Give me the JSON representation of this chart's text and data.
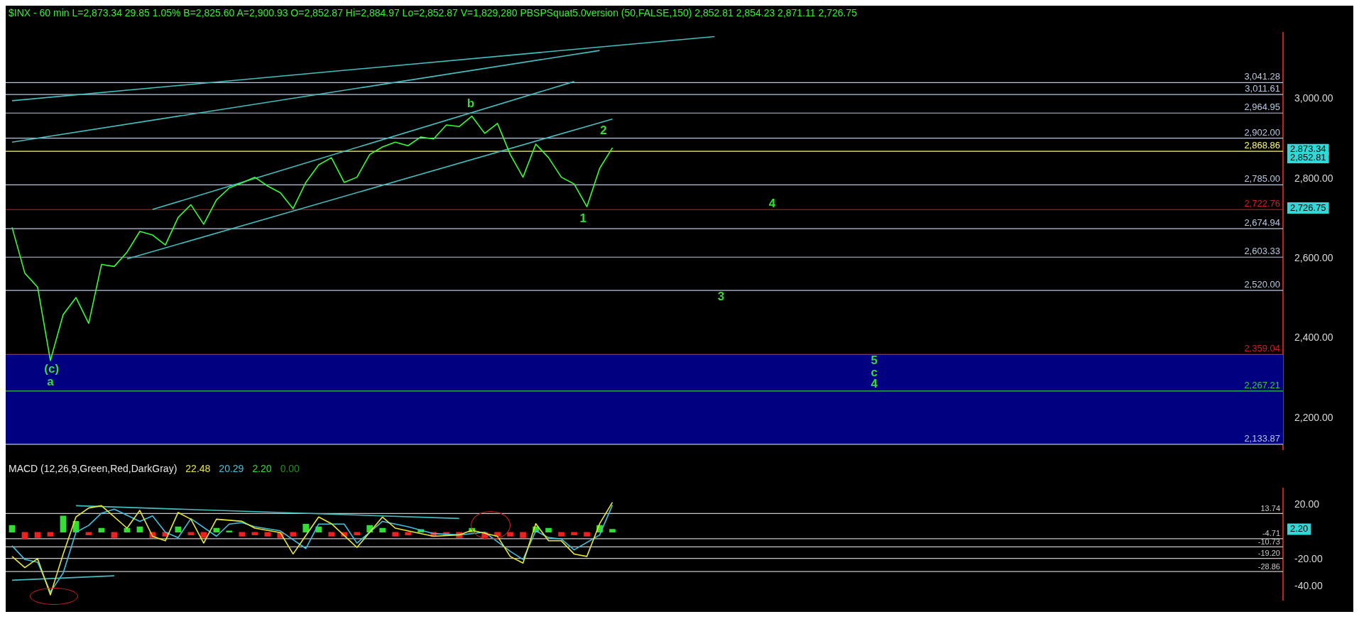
{
  "chart_data": [
    {
      "type": "line",
      "subtitle": "$INX - 60 min  L=2,873.34  29.85  1.05%  B=2,825.60  A=2,900.93  O=2,852.87  Hi=2,884.97  Lo=2,852.87  V=1,829,280  PBSPSquat5.0version (50,FALSE,150)  2,852.81  2,854.23  2,871.11  2,726.75",
      "categories": [
        null,
        null,
        null,
        null,
        null,
        null,
        null,
        null,
        null,
        null,
        null,
        null,
        null,
        null,
        null,
        null,
        null,
        null,
        null,
        null,
        null,
        null,
        null,
        null,
        null,
        null,
        null,
        null,
        null,
        null,
        null,
        null,
        null,
        null,
        null,
        null,
        null,
        null,
        null,
        null,
        null,
        null,
        null,
        null,
        null,
        null,
        null,
        null,
        null,
        null,
        null,
        null,
        null,
        null,
        null,
        null,
        null,
        null,
        null,
        null,
        null,
        null,
        null,
        null,
        null,
        null,
        null,
        null,
        null,
        null,
        null,
        null,
        null,
        null,
        null,
        null,
        null,
        null,
        null,
        null,
        null,
        null,
        null,
        null,
        null,
        null,
        null,
        null,
        null,
        null,
        null,
        null,
        null,
        null,
        null,
        null,
        null,
        null,
        null,
        null
      ],
      "ylim": [
        2120,
        3166
      ],
      "yticks": [
        {
          "value": 2200,
          "label": "2,200.00"
        },
        {
          "value": 2400,
          "label": "2,400.00"
        },
        {
          "value": 2600,
          "label": "2,600.00"
        },
        {
          "value": 2800,
          "label": "2,800.00"
        },
        {
          "value": 3000,
          "label": "3,000.00"
        }
      ],
      "tick_labels": "y",
      "grid": false,
      "legend": false,
      "series": [
        {
          "color": "#33ff33",
          "values": [
            2678,
            2563,
            2528,
            2344,
            2459,
            2502,
            2437,
            2585,
            2580,
            2616,
            2668,
            2659,
            2634,
            2703,
            2735,
            2686,
            2747,
            2777,
            2790,
            2804,
            2782,
            2765,
            2725,
            2791,
            2835,
            2853,
            2791,
            2804,
            2861,
            2880,
            2892,
            2883,
            2905,
            2900,
            2935,
            2931,
            2957,
            2914,
            2939,
            2861,
            2804,
            2887,
            2853,
            2804,
            2787,
            2730,
            2826,
            2878,
            null,
            null,
            null,
            null,
            null,
            null,
            null,
            null,
            null,
            null,
            null,
            null,
            null,
            null,
            null,
            null,
            null,
            null,
            null,
            null,
            null,
            null,
            null,
            null,
            null,
            null,
            null,
            null,
            null,
            null,
            null,
            null,
            null,
            null,
            null,
            null,
            null,
            null,
            null,
            null,
            null,
            null,
            null,
            null,
            null,
            null,
            null,
            null,
            null,
            null,
            null,
            null
          ]
        },
        {
          "color": "#40c0c0",
          "values": [
            2996,
            null,
            null,
            null,
            null,
            null,
            null,
            null,
            null,
            null,
            null,
            null,
            null,
            null,
            null,
            null,
            null,
            null,
            null,
            null,
            null,
            null,
            null,
            null,
            null,
            null,
            null,
            null,
            null,
            null,
            null,
            null,
            null,
            null,
            null,
            null,
            null,
            null,
            null,
            null,
            null,
            null,
            null,
            null,
            null,
            null,
            null,
            null,
            null,
            null,
            null,
            null,
            null,
            null,
            null,
            3157,
            null,
            null,
            null,
            null,
            null,
            null,
            null,
            null,
            null,
            null,
            null,
            null,
            null,
            null,
            null,
            null,
            null,
            null,
            null,
            null,
            null,
            null,
            null,
            null,
            null,
            null,
            null,
            null,
            null,
            null,
            null,
            null,
            null,
            null,
            null,
            null,
            null,
            null,
            null,
            null,
            null,
            null,
            null,
            null
          ]
        },
        {
          "color": "#40c0c0",
          "values": [
            2892,
            null,
            null,
            null,
            null,
            null,
            null,
            null,
            null,
            null,
            null,
            null,
            null,
            null,
            null,
            null,
            null,
            null,
            null,
            null,
            null,
            null,
            null,
            null,
            null,
            null,
            null,
            null,
            null,
            null,
            null,
            null,
            null,
            null,
            null,
            null,
            null,
            null,
            null,
            null,
            null,
            null,
            null,
            null,
            null,
            null,
            3122,
            null,
            null,
            null,
            null,
            null,
            null,
            null,
            null,
            null,
            null,
            null,
            null,
            null,
            null,
            null,
            null,
            null,
            null,
            null,
            null,
            null,
            null,
            null,
            null,
            null,
            null,
            null,
            null,
            null,
            null,
            null,
            null,
            null,
            null,
            null,
            null,
            null,
            null,
            null,
            null,
            null,
            null,
            null,
            null,
            null,
            null,
            null,
            null,
            null,
            null,
            null,
            null,
            null
          ]
        },
        {
          "color": "#40c0c0",
          "values": [
            null,
            null,
            null,
            null,
            null,
            null,
            null,
            null,
            null,
            null,
            null,
            2723,
            null,
            null,
            null,
            null,
            null,
            null,
            null,
            null,
            null,
            null,
            null,
            null,
            null,
            null,
            null,
            null,
            null,
            null,
            null,
            null,
            null,
            null,
            null,
            null,
            null,
            null,
            null,
            null,
            null,
            null,
            null,
            null,
            3044,
            null,
            null,
            null,
            null,
            null,
            null,
            null,
            null,
            null,
            null,
            null,
            null,
            null,
            null,
            null,
            null,
            null,
            null,
            null,
            null,
            null,
            null,
            null,
            null,
            null,
            null,
            null,
            null,
            null,
            null,
            null,
            null,
            null,
            null,
            null,
            null,
            null,
            null,
            null,
            null,
            null,
            null,
            null,
            null,
            null,
            null,
            null,
            null,
            null,
            null,
            null,
            null,
            null,
            null,
            null
          ]
        },
        {
          "color": "#40c0c0",
          "values": [
            null,
            null,
            null,
            null,
            null,
            null,
            null,
            null,
            null,
            2599,
            null,
            null,
            null,
            null,
            null,
            null,
            null,
            null,
            null,
            null,
            null,
            null,
            null,
            null,
            null,
            null,
            null,
            null,
            null,
            null,
            null,
            null,
            null,
            null,
            null,
            null,
            null,
            null,
            null,
            null,
            null,
            null,
            null,
            null,
            null,
            null,
            null,
            2950,
            null,
            null,
            null,
            null,
            null,
            null,
            null,
            null,
            null,
            null,
            null,
            null,
            null,
            null,
            null,
            null,
            null,
            null,
            null,
            null,
            null,
            null,
            null,
            null,
            null,
            null,
            null,
            null,
            null,
            null,
            null,
            null,
            null,
            null,
            null,
            null,
            null,
            null,
            null,
            null,
            null,
            null,
            null,
            null,
            null,
            null,
            null,
            null,
            null,
            null,
            null,
            null
          ]
        }
      ],
      "ref_lines": [
        {
          "axis": "y",
          "value": 3041.28,
          "label": "3,041.28",
          "color": "#b8c8e0"
        },
        {
          "axis": "y",
          "value": 3011.61,
          "label": "3,011.61",
          "color": "#b8c8e0"
        },
        {
          "axis": "y",
          "value": 2964.95,
          "label": "2,964.95",
          "color": "#b8c8e0"
        },
        {
          "axis": "y",
          "value": 2902,
          "label": "2,902.00",
          "color": "#b8c8e0"
        },
        {
          "axis": "y",
          "value": 2868.86,
          "label": "2,868.86",
          "color": "#ffff66"
        },
        {
          "axis": "y",
          "value": 2785,
          "label": "2,785.00",
          "color": "#b8c8e0"
        },
        {
          "axis": "y",
          "value": 2722.76,
          "label": "2,722.76",
          "color": "#d02020"
        },
        {
          "axis": "y",
          "value": 2674.94,
          "label": "2,674.94",
          "color": "#b8c8e0"
        },
        {
          "axis": "y",
          "value": 2603.33,
          "label": "2,603.33",
          "color": "#b8c8e0"
        },
        {
          "axis": "y",
          "value": 2520,
          "label": "2,520.00",
          "color": "#b8c8e0"
        },
        {
          "axis": "y",
          "value": 2359.04,
          "label": "2,359.04",
          "color": "#d02020"
        },
        {
          "axis": "y",
          "value": 2267.21,
          "label": "2,267.21",
          "color": "#33cc33"
        },
        {
          "axis": "y",
          "value": 2133.87,
          "label": "2,133.87",
          "color": "#b8c8e0"
        }
      ],
      "bands": [
        {
          "axis": "y",
          "from": 2133.87,
          "to": 2359.04,
          "color": "#000080"
        }
      ],
      "annotations": [
        "b",
        "2",
        "1",
        "4",
        "3",
        "5",
        "c",
        "4",
        "(c)",
        "a",
        "2,873.34",
        "2,852.81",
        "2,726.75"
      ]
    },
    {
      "type": "line",
      "title": "MACD (12,26,9,Green,Red,DarkGray)",
      "categories": [
        null,
        null,
        null,
        null,
        null,
        null,
        null,
        null,
        null,
        null,
        null,
        null,
        null,
        null,
        null,
        null,
        null,
        null,
        null,
        null,
        null,
        null,
        null,
        null,
        null,
        null,
        null,
        null,
        null,
        null,
        null,
        null,
        null,
        null,
        null,
        null,
        null,
        null,
        null,
        null,
        null,
        null,
        null,
        null,
        null,
        null,
        null,
        null,
        null,
        null,
        null,
        null,
        null,
        null,
        null,
        null,
        null,
        null,
        null,
        null,
        null,
        null,
        null,
        null,
        null,
        null,
        null,
        null,
        null,
        null,
        null,
        null,
        null,
        null,
        null,
        null,
        null,
        null,
        null,
        null,
        null,
        null,
        null,
        null,
        null,
        null,
        null,
        null,
        null,
        null,
        null,
        null,
        null,
        null,
        null,
        null,
        null,
        null,
        null,
        null
      ],
      "ylim": [
        -50,
        32
      ],
      "yticks": [
        {
          "value": -40,
          "label": "-40.00"
        },
        {
          "value": -20,
          "label": "-20.00"
        },
        {
          "value": 20,
          "label": "20.00"
        }
      ],
      "tick_labels": "y",
      "grid": false,
      "legend": false,
      "series": [
        {
          "type": "bar",
          "color": "#33dd33",
          "values": [
            5,
            null,
            null,
            null,
            12,
            8,
            null,
            3,
            null,
            3,
            4,
            null,
            null,
            4,
            null,
            null,
            3,
            1,
            null,
            null,
            null,
            null,
            null,
            6,
            4,
            null,
            null,
            null,
            5,
            3,
            null,
            null,
            2,
            null,
            null,
            null,
            3,
            null,
            null,
            null,
            null,
            4,
            3,
            null,
            null,
            null,
            5,
            2.2,
            null,
            null,
            null,
            null,
            null,
            null,
            null,
            null,
            null,
            null,
            null,
            null,
            null,
            null,
            null,
            null,
            null,
            null,
            null,
            null,
            null,
            null,
            null,
            null,
            null,
            null,
            null,
            null,
            null,
            null,
            null,
            null,
            null,
            null,
            null,
            null,
            null,
            null,
            null,
            null,
            null,
            null,
            null,
            null,
            null,
            null,
            null,
            null,
            null,
            null,
            null,
            null
          ]
        },
        {
          "type": "bar",
          "color": "#ee2020",
          "values": [
            null,
            -5,
            -4,
            -3,
            null,
            null,
            -2,
            null,
            -4,
            null,
            null,
            -4,
            -3,
            null,
            -2,
            -4,
            null,
            null,
            -3,
            -2,
            -3,
            -4,
            -3,
            null,
            null,
            -3,
            -3,
            -2,
            null,
            null,
            -3,
            -2,
            null,
            -3,
            -2,
            -4,
            null,
            -4,
            -3,
            -3,
            -4,
            null,
            null,
            -3,
            -2,
            -3,
            null,
            null,
            null,
            null,
            null,
            null,
            null,
            null,
            null,
            null,
            null,
            null,
            null,
            null,
            null,
            null,
            null,
            null,
            null,
            null,
            null,
            null,
            null,
            null,
            null,
            null,
            null,
            null,
            null,
            null,
            null,
            null,
            null,
            null,
            null,
            null,
            null,
            null,
            null,
            null,
            null,
            null,
            null,
            null,
            null,
            null,
            null,
            null,
            null,
            null,
            null,
            null,
            null,
            null
          ]
        },
        {
          "color": "#e8e830",
          "values": [
            -17.8,
            -26,
            -19.4,
            -46,
            -16,
            11.2,
            17.8,
            19.5,
            null,
            3,
            16,
            -3,
            -6.3,
            14.5,
            9.6,
            -8,
            9.6,
            null,
            8,
            3,
            null,
            -0.3,
            -16,
            null,
            11.2,
            6.3,
            null,
            -11.2,
            null,
            11.2,
            3,
            null,
            null,
            -3,
            null,
            -1.9,
            1.4,
            null,
            -3,
            -17.8,
            -22.7,
            6.3,
            -6.3,
            -6.3,
            -16,
            -17.8,
            6.3,
            22,
            null,
            null,
            null,
            null,
            null,
            null,
            null,
            null,
            null,
            null,
            null,
            null,
            null,
            null,
            null,
            null,
            null,
            null,
            null,
            null,
            null,
            null,
            null,
            null,
            null,
            null,
            null,
            null,
            null,
            null,
            null,
            null,
            null,
            null,
            null,
            null,
            null,
            null,
            null,
            null,
            null,
            null,
            null,
            null,
            null,
            null,
            null,
            null,
            null,
            null,
            null,
            null
          ]
        },
        {
          "color": "#40c0e0",
          "values": [
            -10,
            -20,
            -22,
            -44,
            -30,
            0,
            5,
            14,
            17,
            null,
            8,
            12,
            0,
            -4,
            10,
            null,
            -3,
            6,
            7,
            4,
            null,
            1,
            null,
            -12,
            6,
            null,
            6,
            -8,
            null,
            8,
            null,
            4,
            null,
            -1,
            null,
            -2,
            null,
            0,
            null,
            -14,
            -20,
            1,
            -4,
            -5,
            -13,
            null,
            -2,
            20,
            null,
            null,
            null,
            null,
            null,
            null,
            null,
            null,
            null,
            null,
            null,
            null,
            null,
            null,
            null,
            null,
            null,
            null,
            null,
            null,
            null,
            null,
            null,
            null,
            null,
            null,
            null,
            null,
            null,
            null,
            null,
            null,
            null,
            null,
            null,
            null,
            null,
            null,
            null,
            null,
            null,
            null,
            null,
            null,
            null,
            null,
            null,
            null,
            null,
            null,
            null,
            null
          ]
        },
        {
          "color": "#40c0c0",
          "values": [
            null,
            null,
            null,
            null,
            null,
            19.5,
            null,
            null,
            null,
            null,
            null,
            null,
            null,
            null,
            null,
            null,
            null,
            null,
            null,
            null,
            null,
            null,
            null,
            null,
            null,
            null,
            null,
            null,
            null,
            null,
            null,
            null,
            null,
            null,
            null,
            10.1,
            null,
            null,
            null,
            null,
            null,
            null,
            null,
            null,
            null,
            null,
            null,
            null,
            null,
            null,
            null,
            null,
            null,
            null,
            null,
            null,
            null,
            null,
            null,
            null,
            null,
            null,
            null,
            null,
            null,
            null,
            null,
            null,
            null,
            null,
            null,
            null,
            null,
            null,
            null,
            null,
            null,
            null,
            null,
            null,
            null,
            null,
            null,
            null,
            null,
            null,
            null,
            null,
            null,
            null,
            null,
            null,
            null,
            null,
            null,
            null,
            null,
            null,
            null,
            null
          ]
        },
        {
          "color": "#40c0c0",
          "values": [
            -35.3,
            null,
            null,
            null,
            null,
            null,
            null,
            null,
            -32,
            null,
            null,
            null,
            null,
            null,
            null,
            null,
            null,
            null,
            null,
            null,
            null,
            null,
            null,
            null,
            null,
            null,
            null,
            null,
            null,
            null,
            null,
            null,
            null,
            null,
            null,
            null,
            null,
            null,
            null,
            null,
            null,
            null,
            null,
            null,
            null,
            null,
            null,
            null,
            null,
            null,
            null,
            null,
            null,
            null,
            null,
            null,
            null,
            null,
            null,
            null,
            null,
            null,
            null,
            null,
            null,
            null,
            null,
            null,
            null,
            null,
            null,
            null,
            null,
            null,
            null,
            null,
            null,
            null,
            null,
            null,
            null,
            null,
            null,
            null,
            null,
            null,
            null,
            null,
            null,
            null,
            null,
            null,
            null,
            null,
            null,
            null,
            null,
            null,
            null,
            null
          ]
        }
      ],
      "ref_lines": [
        {
          "axis": "y",
          "value": 13.74,
          "label": "13.74",
          "color": "#c8c8c8"
        },
        {
          "axis": "y",
          "value": -4.71,
          "label": "-4.71",
          "color": "#c8c8c8"
        },
        {
          "axis": "y",
          "value": -10.73,
          "label": "-10.73",
          "color": "#c8c8c8"
        },
        {
          "axis": "y",
          "value": -19.2,
          "label": "-19.20",
          "color": "#c8c8c8"
        },
        {
          "axis": "y",
          "value": -28.86,
          "label": "-28.86",
          "color": "#c8c8c8"
        }
      ],
      "annotations": [
        "22.48",
        "20.29",
        "2.20",
        "0.00",
        "2.20"
      ]
    }
  ]
}
